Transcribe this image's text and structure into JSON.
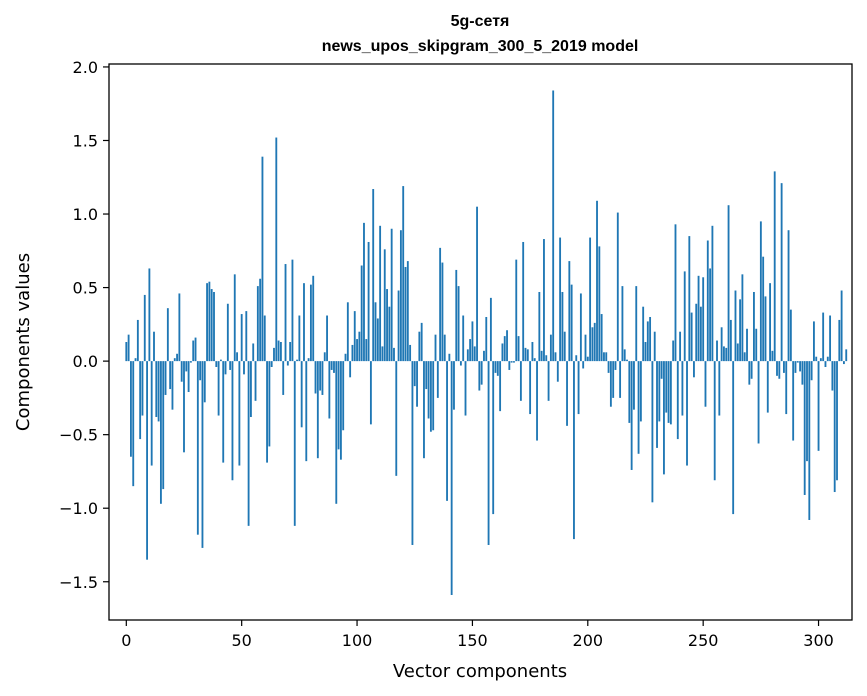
{
  "chart_data": {
    "type": "bar",
    "title": "5g-сетя",
    "subtitle": "news_upos_skipgram_300_5_2019 model",
    "xlabel": "Vector components",
    "ylabel": "Components values",
    "xlim": [
      -7.5,
      314.5
    ],
    "ylim": [
      -1.76,
      2.02
    ],
    "xticks": [
      0,
      50,
      100,
      150,
      200,
      250,
      300
    ],
    "xtick_labels": [
      "0",
      "50",
      "100",
      "150",
      "200",
      "250",
      "300"
    ],
    "yticks": [
      -1.5,
      -1.0,
      -0.5,
      0.0,
      0.5,
      1.0,
      1.5,
      2.0
    ],
    "ytick_labels": [
      "−1.5",
      "−1.0",
      "−0.5",
      "0.0",
      "0.5",
      "1.0",
      "1.5",
      "2.0"
    ],
    "grid": false,
    "bar_color": "#1f77b4",
    "series": [
      {
        "values": [
          0.13,
          0.18,
          -0.65,
          -0.85,
          0.02,
          0.28,
          -0.53,
          -0.37,
          0.45,
          -1.35,
          0.63,
          -0.71,
          0.2,
          -0.38,
          -0.41,
          -0.97,
          -0.87,
          -0.23,
          0.36,
          -0.19,
          -0.33,
          0.02,
          0.05,
          0.46,
          -0.14,
          -0.62,
          -0.07,
          -0.21,
          -0.01,
          0.14,
          0.16,
          -1.18,
          -0.13,
          -1.27,
          -0.28,
          0.53,
          0.54,
          0.49,
          0.47,
          -0.04,
          -0.37,
          0.01,
          -0.69,
          -0.09,
          0.39,
          -0.06,
          -0.81,
          0.59,
          0.06,
          -0.71,
          0.32,
          -0.09,
          0.34,
          -1.12,
          -0.38,
          0.12,
          -0.27,
          0.51,
          0.56,
          1.39,
          0.31,
          -0.69,
          -0.58,
          -0.04,
          0.09,
          1.52,
          0.14,
          0.13,
          -0.23,
          0.66,
          -0.03,
          0.13,
          0.69,
          -1.12,
          0.01,
          0.31,
          -0.45,
          0.53,
          -0.68,
          0.02,
          0.52,
          0.58,
          -0.22,
          -0.66,
          -0.2,
          -0.23,
          0.06,
          0.31,
          -0.39,
          -0.06,
          -0.08,
          -0.97,
          -0.6,
          -0.67,
          -0.47,
          0.05,
          0.4,
          -0.11,
          0.11,
          0.34,
          0.15,
          0.2,
          0.65,
          0.94,
          0.15,
          0.81,
          -0.43,
          1.17,
          0.4,
          0.29,
          0.92,
          0.1,
          0.76,
          0.49,
          0.37,
          0.9,
          0.09,
          -0.78,
          0.48,
          0.89,
          1.19,
          0.64,
          0.68,
          0.11,
          -1.25,
          -0.17,
          -0.31,
          0.2,
          0.26,
          -0.66,
          -0.19,
          -0.39,
          -0.48,
          -0.47,
          0.18,
          -0.25,
          0.77,
          0.67,
          0.18,
          -0.95,
          0.05,
          -1.59,
          -0.33,
          0.62,
          0.51,
          -0.03,
          0.31,
          -0.37,
          0.08,
          0.15,
          0.27,
          0.1,
          1.05,
          -0.2,
          -0.16,
          0.07,
          0.3,
          -1.25,
          0.43,
          -1.04,
          -0.08,
          -0.1,
          -0.34,
          0.12,
          0.17,
          0.21,
          -0.06,
          -0.01,
          -0.01,
          0.69,
          0.17,
          -0.27,
          0.81,
          0.09,
          0.08,
          -0.36,
          0.13,
          0.02,
          -0.54,
          0.47,
          0.07,
          0.83,
          0.04,
          -0.27,
          0.18,
          1.84,
          0.06,
          -0.14,
          0.84,
          0.47,
          0.2,
          -0.44,
          0.68,
          0.52,
          -1.21,
          0.04,
          -0.36,
          0.46,
          -0.05,
          0.18,
          0.03,
          0.84,
          0.23,
          0.26,
          1.09,
          0.78,
          0.32,
          0.06,
          0.06,
          -0.08,
          -0.31,
          -0.25,
          -0.06,
          1.01,
          -0.25,
          0.51,
          0.08,
          0.01,
          -0.42,
          -0.74,
          -0.33,
          0.51,
          -0.63,
          -0.41,
          0.37,
          0.13,
          0.27,
          0.3,
          -0.96,
          0.2,
          -0.59,
          -0.41,
          -0.12,
          -0.77,
          -0.35,
          -0.42,
          -0.43,
          0.14,
          0.93,
          -0.53,
          0.2,
          -0.37,
          0.61,
          -0.71,
          0.85,
          0.33,
          -0.11,
          0.39,
          0.58,
          0.37,
          0.57,
          -0.31,
          0.82,
          0.63,
          0.92,
          -0.81,
          0.14,
          -0.37,
          0.23,
          0.1,
          0.09,
          1.06,
          0.28,
          -1.04,
          0.48,
          0.12,
          0.42,
          0.59,
          0.06,
          0.22,
          -0.16,
          -0.12,
          0.47,
          0.22,
          -0.56,
          0.95,
          0.71,
          0.44,
          -0.35,
          0.53,
          0.07,
          1.29,
          -0.1,
          -0.12,
          1.21,
          -0.08,
          -0.36,
          0.89,
          0.35,
          -0.54,
          -0.08,
          -0.01,
          -0.07,
          -0.16,
          -0.91,
          -0.68,
          -1.08,
          -0.13,
          0.27,
          0.03,
          -0.61,
          0.02,
          0.33,
          -0.04,
          0.03,
          0.31,
          -0.2,
          -0.89,
          -0.81,
          0.28,
          0.48,
          -0.02,
          0.08
        ]
      }
    ]
  }
}
